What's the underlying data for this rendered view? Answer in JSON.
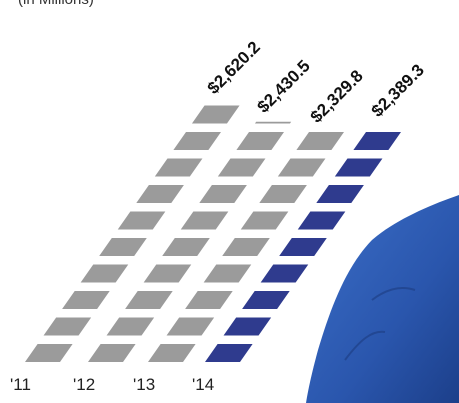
{
  "chart_data": {
    "type": "bar",
    "subtitle": "(in Millions)",
    "categories": [
      "'11",
      "'12",
      "'13",
      "'14"
    ],
    "values": [
      2620.2,
      2430.5,
      2329.8,
      2389.3
    ],
    "value_labels": [
      "$2,620.2",
      "$2,430.5",
      "$2,329.8",
      "$2,389.3"
    ],
    "colors": [
      "#9b9b9b",
      "#9b9b9b",
      "#9b9b9b",
      "#2f3b8e"
    ]
  }
}
